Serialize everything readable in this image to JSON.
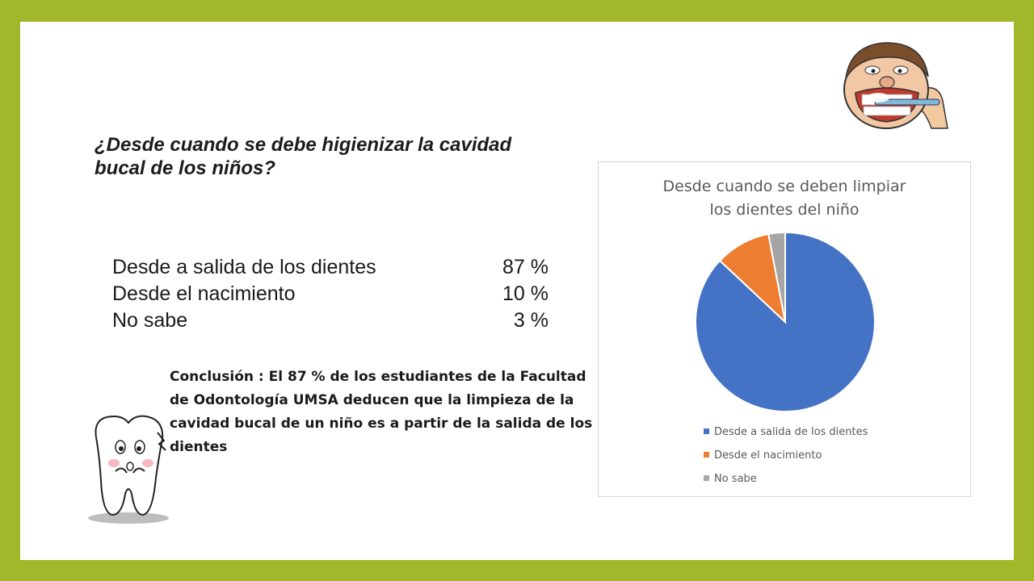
{
  "question": {
    "line1": "¿Desde cuando se debe higienizar la cavidad",
    "line2": "bucal de los niños?"
  },
  "results": [
    {
      "label": "Desde a salida de los dientes",
      "value": "87 %"
    },
    {
      "label": "Desde el nacimiento",
      "value": "10 %"
    },
    {
      "label": "No sabe",
      "value": "3 %"
    }
  ],
  "conclusion": "Conclusión : El 87 %  de los estudiantes  de la Facultad de Odontología  UMSA deducen que la limpieza de la cavidad bucal de un niño es a partir de la salida de los dientes",
  "chart_data": {
    "type": "pie",
    "title_line1": "Desde cuando se deben limpiar",
    "title_line2": "los dientes del niño",
    "categories": [
      "Desde a salida de los dientes",
      "Desde el nacimiento",
      "No sabe"
    ],
    "values": [
      87,
      10,
      3
    ],
    "colors": [
      "#4472c4",
      "#ed7d31",
      "#a5a5a5"
    ],
    "legend_position": "bottom"
  }
}
